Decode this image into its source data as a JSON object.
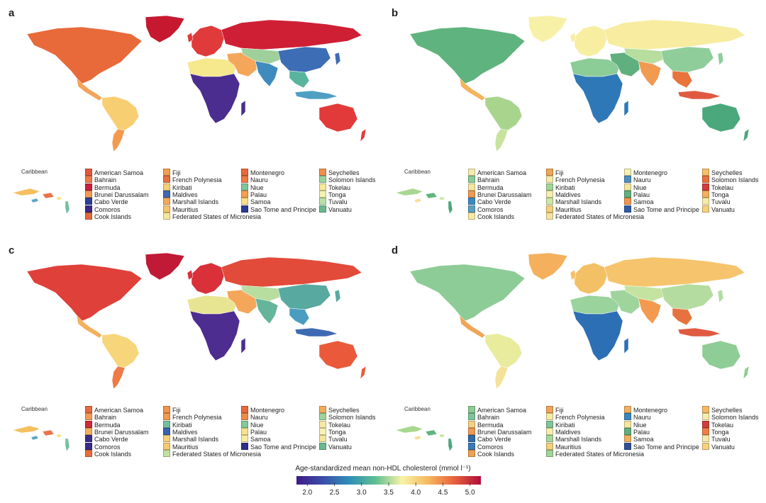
{
  "panels": [
    {
      "letter": "a",
      "regions": {
        "north_america": "#e86a3a",
        "greenland": "#c6192f",
        "central_america": "#f3a45a",
        "south_america": "#f7cf72",
        "south_cone": "#f39a50",
        "europe": "#e03a3a",
        "russia": "#cf1f35",
        "north_africa": "#f6e88c",
        "sub_saharan_africa": "#4a2d8f",
        "middle_east": "#f4a65a",
        "central_asia": "#9fcf9a",
        "south_asia": "#3f8bbd",
        "east_asia": "#3d6db5",
        "southeast_asia": "#59b49d",
        "australia": "#e23a3a",
        "indonesia": "#4e9fc2"
      },
      "caribbean": [
        "#f4c060",
        "#e8744a",
        "#5aa4c8",
        "#f6e48a",
        "#74bfa0"
      ],
      "legend": [
        {
          "name": "American Samoa",
          "color": "#e05a3a"
        },
        {
          "name": "Bahrain",
          "color": "#ee7a45"
        },
        {
          "name": "Bermuda",
          "color": "#c8203a"
        },
        {
          "name": "Brunei Darussalam",
          "color": "#f29a55"
        },
        {
          "name": "Cabo Verde",
          "color": "#2e3f95"
        },
        {
          "name": "Comoros",
          "color": "#3a2a85"
        },
        {
          "name": "Cook Islands",
          "color": "#e06a3a"
        },
        {
          "name": "Fiji",
          "color": "#f0a050"
        },
        {
          "name": "French Polynesia",
          "color": "#e8703e"
        },
        {
          "name": "Kiribati",
          "color": "#f5d07a"
        },
        {
          "name": "Maldives",
          "color": "#3f6ab2"
        },
        {
          "name": "Marshall Islands",
          "color": "#f4a85a"
        },
        {
          "name": "Mauritius",
          "color": "#f6c46a"
        },
        {
          "name": "Federated States of Micronesia",
          "color": "#f7e59a"
        },
        {
          "name": "Montenegro",
          "color": "#e86a3a"
        },
        {
          "name": "Nauru",
          "color": "#ee7a45"
        },
        {
          "name": "Niue",
          "color": "#7fc49a"
        },
        {
          "name": "Palau",
          "color": "#f4a050"
        },
        {
          "name": "Samoa",
          "color": "#f7e08a"
        },
        {
          "name": "Sao Tome and Principe",
          "color": "#2c3a90"
        },
        {
          "name": "Seychelles",
          "color": "#f0904c"
        },
        {
          "name": "Solomon Islands",
          "color": "#9ad39c"
        },
        {
          "name": "Tokelau",
          "color": "#f7e89a"
        },
        {
          "name": "Tonga",
          "color": "#f3f2b0"
        },
        {
          "name": "Tuvalu",
          "color": "#b8e0a8"
        },
        {
          "name": "Vanuatu",
          "color": "#6bb98e"
        }
      ]
    },
    {
      "letter": "b",
      "regions": {
        "north_america": "#5fb37e",
        "greenland": "#f7f1a8",
        "central_america": "#f4b45e",
        "south_america": "#a9d48e",
        "south_cone": "#c8e39e",
        "europe": "#f7eea2",
        "russia": "#f7eca0",
        "north_africa": "#8ccc96",
        "sub_saharan_africa": "#2f78b8",
        "middle_east": "#5fb07e",
        "central_asia": "#b7dd9f",
        "south_asia": "#f19a52",
        "east_asia": "#8fce9a",
        "southeast_asia": "#e8743e",
        "australia": "#4aa87c",
        "indonesia": "#e05a42"
      },
      "caribbean": [
        "#a8d78f",
        "#60b47f",
        "#f5e09a",
        "#c9e6a0",
        "#4ea57d"
      ],
      "legend": [
        {
          "name": "American Samoa",
          "color": "#f7ebb0"
        },
        {
          "name": "Bahrain",
          "color": "#8ccc96"
        },
        {
          "name": "Bermuda",
          "color": "#f6e7a0"
        },
        {
          "name": "Brunei Darussalam",
          "color": "#f19a52"
        },
        {
          "name": "Cabo Verde",
          "color": "#3b88c0"
        },
        {
          "name": "Comoros",
          "color": "#5aa0c2"
        },
        {
          "name": "Cook Islands",
          "color": "#f7e8a2"
        },
        {
          "name": "Fiji",
          "color": "#f2a456"
        },
        {
          "name": "French Polynesia",
          "color": "#f7eaa6"
        },
        {
          "name": "Kiribati",
          "color": "#a2d497"
        },
        {
          "name": "Maldives",
          "color": "#f7eeae"
        },
        {
          "name": "Marshall Islands",
          "color": "#cfe6a4"
        },
        {
          "name": "Mauritius",
          "color": "#f5cf7a"
        },
        {
          "name": "Federated States of Micronesia",
          "color": "#f7e3a0"
        },
        {
          "name": "Montenegro",
          "color": "#f7f2b2"
        },
        {
          "name": "Nauru",
          "color": "#4d8fc0"
        },
        {
          "name": "Niue",
          "color": "#f6e7a0"
        },
        {
          "name": "Palau",
          "color": "#5fb07e"
        },
        {
          "name": "Samoa",
          "color": "#f0944e"
        },
        {
          "name": "Sao Tome and Principe",
          "color": "#2e5aa8"
        },
        {
          "name": "Seychelles",
          "color": "#f6c06a"
        },
        {
          "name": "Solomon Islands",
          "color": "#e8713e"
        },
        {
          "name": "Tokelau",
          "color": "#d03d3a"
        },
        {
          "name": "Tonga",
          "color": "#f4b05c"
        },
        {
          "name": "Tuvalu",
          "color": "#f7eaa8"
        },
        {
          "name": "Vanuatu",
          "color": "#f6d27c"
        }
      ]
    },
    {
      "letter": "c",
      "regions": {
        "north_america": "#e0403a",
        "greenland": "#c01a36",
        "central_america": "#f4b05c",
        "south_america": "#f7d57a",
        "south_cone": "#ee7a45",
        "europe": "#d9303a",
        "russia": "#e24a3a",
        "north_africa": "#e8e592",
        "sub_saharan_africa": "#4d2d90",
        "middle_east": "#f4a65a",
        "central_asia": "#b7dd9f",
        "south_asia": "#64b59a",
        "east_asia": "#58a9a0",
        "southeast_asia": "#4a9cc0",
        "australia": "#ea5a3a",
        "indonesia": "#3e6ab3"
      },
      "caribbean": [
        "#f4c060",
        "#e8744a",
        "#5aa4c8",
        "#f6e48a",
        "#74bfa0"
      ],
      "legend": [
        {
          "name": "American Samoa",
          "color": "#e56a40"
        },
        {
          "name": "Bahrain",
          "color": "#f29a55"
        },
        {
          "name": "Bermuda",
          "color": "#cf2a38"
        },
        {
          "name": "Brunei Darussalam",
          "color": "#f4b05c"
        },
        {
          "name": "Cabo Verde",
          "color": "#3a2d88"
        },
        {
          "name": "Comoros",
          "color": "#3a2a85"
        },
        {
          "name": "Cook Islands",
          "color": "#e86c3e"
        },
        {
          "name": "Fiji",
          "color": "#f0944e"
        },
        {
          "name": "French Polynesia",
          "color": "#f09a52"
        },
        {
          "name": "Kiribati",
          "color": "#74bfa0"
        },
        {
          "name": "Maldives",
          "color": "#3a62ae"
        },
        {
          "name": "Marshall Islands",
          "color": "#f6cf78"
        },
        {
          "name": "Mauritius",
          "color": "#f5ca70"
        },
        {
          "name": "Federated States of Micronesia",
          "color": "#c2e1a0"
        },
        {
          "name": "Montenegro",
          "color": "#e66a3c"
        },
        {
          "name": "Nauru",
          "color": "#f08c4a"
        },
        {
          "name": "Niue",
          "color": "#84c89a"
        },
        {
          "name": "Palau",
          "color": "#f7e38e"
        },
        {
          "name": "Samoa",
          "color": "#f7eea4"
        },
        {
          "name": "Sao Tome and Principe",
          "color": "#2e2f8a"
        },
        {
          "name": "Seychelles",
          "color": "#f4ac5a"
        },
        {
          "name": "Solomon Islands",
          "color": "#a0d49a"
        },
        {
          "name": "Tokelau",
          "color": "#f7eaa8"
        },
        {
          "name": "Tonga",
          "color": "#f7f1b4"
        },
        {
          "name": "Tuvalu",
          "color": "#f4e69a"
        },
        {
          "name": "Vanuatu",
          "color": "#6bb98e"
        }
      ]
    },
    {
      "letter": "d",
      "regions": {
        "north_america": "#8dcc96",
        "greenland": "#f4b05c",
        "central_america": "#f2a456",
        "south_america": "#e8ec9c",
        "south_cone": "#f4e29a",
        "europe": "#f3c066",
        "russia": "#f6c46c",
        "north_africa": "#9ad39c",
        "sub_saharan_africa": "#2d6fb5",
        "middle_east": "#9fd49d",
        "central_asia": "#c4e3a0",
        "south_asia": "#f39a50",
        "east_asia": "#b4dca0",
        "southeast_asia": "#e6733e",
        "australia": "#8ecd96",
        "indonesia": "#e05a42"
      },
      "caribbean": [
        "#a8d78f",
        "#60b47f",
        "#f5e09a",
        "#c9e6a0",
        "#4ea57d"
      ],
      "legend": [
        {
          "name": "American Samoa",
          "color": "#8ccc96"
        },
        {
          "name": "Bahrain",
          "color": "#7fc49a"
        },
        {
          "name": "Bermuda",
          "color": "#f6d080"
        },
        {
          "name": "Brunei Darussalam",
          "color": "#f19a52"
        },
        {
          "name": "Cabo Verde",
          "color": "#2e6aa8"
        },
        {
          "name": "Comoros",
          "color": "#3a7ab8"
        },
        {
          "name": "Cook Islands",
          "color": "#f0a050"
        },
        {
          "name": "Fiji",
          "color": "#f2a456"
        },
        {
          "name": "French Polynesia",
          "color": "#f7eaa6"
        },
        {
          "name": "Kiribati",
          "color": "#7fc49a"
        },
        {
          "name": "Maldives",
          "color": "#f7eeae"
        },
        {
          "name": "Marshall Islands",
          "color": "#a8d89a"
        },
        {
          "name": "Mauritius",
          "color": "#f5cf7a"
        },
        {
          "name": "Federated States of Micronesia",
          "color": "#a2d497"
        },
        {
          "name": "Montenegro",
          "color": "#f4b05c"
        },
        {
          "name": "Nauru",
          "color": "#3a86c0"
        },
        {
          "name": "Niue",
          "color": "#f6e7a0"
        },
        {
          "name": "Palau",
          "color": "#5fb07e"
        },
        {
          "name": "Samoa",
          "color": "#f3b05c"
        },
        {
          "name": "Sao Tome and Principe",
          "color": "#2e4f98"
        },
        {
          "name": "Seychelles",
          "color": "#f4b865"
        },
        {
          "name": "Solomon Islands",
          "color": "#f7ecae"
        },
        {
          "name": "Tokelau",
          "color": "#d03d3a"
        },
        {
          "name": "Tonga",
          "color": "#ef7f47"
        },
        {
          "name": "Tuvalu",
          "color": "#f7eaa8"
        },
        {
          "name": "Vanuatu",
          "color": "#f6d27c"
        }
      ]
    }
  ],
  "caribbean_label": "Caribbean",
  "colorbar": {
    "title": "Age-standardized mean non-HDL cholesterol (mmol l⁻¹)",
    "min": 1.8,
    "max": 5.2,
    "ticks": [
      "2.0",
      "2.5",
      "3.0",
      "3.5",
      "4.0",
      "4.5",
      "5.0"
    ],
    "tick_values": [
      2.0,
      2.5,
      3.0,
      3.5,
      4.0,
      4.5,
      5.0
    ],
    "colors": [
      "#3f1a8a",
      "#3b4ea8",
      "#2f8fb8",
      "#5fbf92",
      "#f7f3a6",
      "#f6b85f",
      "#e8603c",
      "#b10d3a"
    ]
  }
}
